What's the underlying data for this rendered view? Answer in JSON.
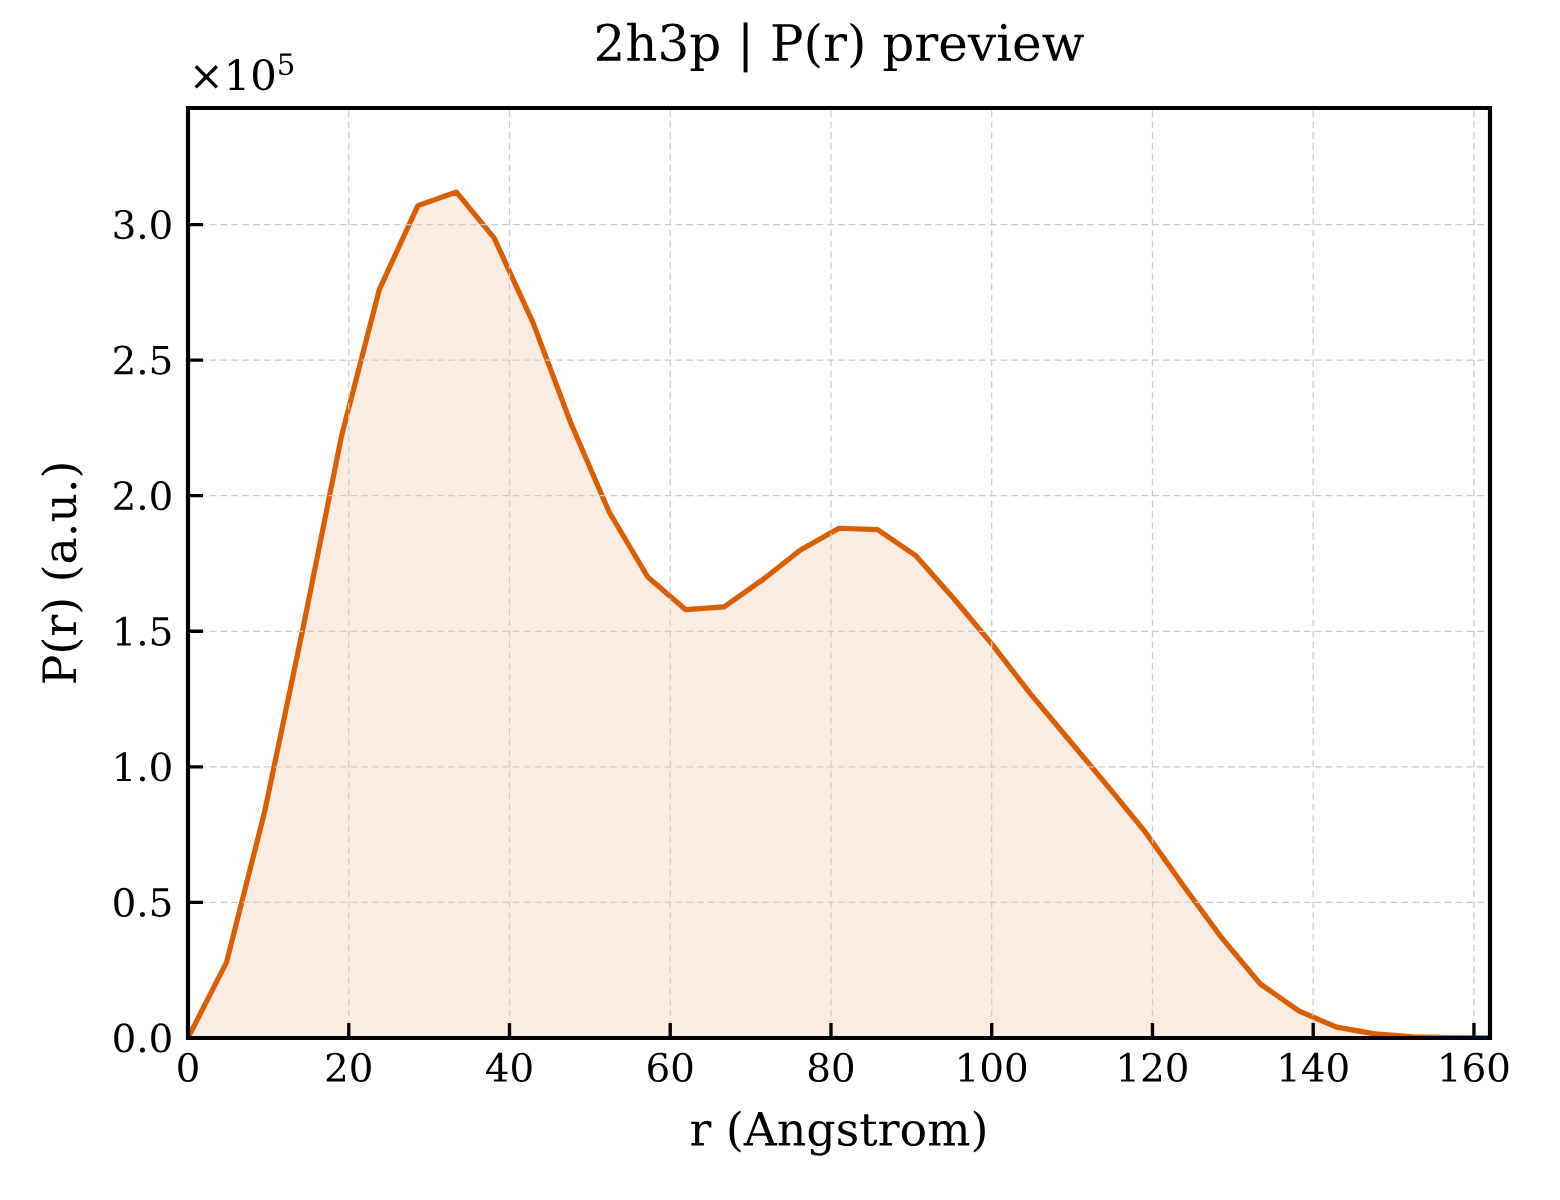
{
  "chart_data": {
    "type": "area",
    "title": "2h3p | P(r) preview",
    "xlabel": "r (Angstrom)",
    "ylabel": "P(r) (a.u.)",
    "annotations": [
      "×10$^{5}$"
    ],
    "x": [
      0,
      4.8,
      9.5,
      14.3,
      19.1,
      23.8,
      28.6,
      33.4,
      38.1,
      42.9,
      47.6,
      52.4,
      57.2,
      61.9,
      66.7,
      71.5,
      76.2,
      81.0,
      85.8,
      90.5,
      95.3,
      100.1,
      104.8,
      109.6,
      114.4,
      119.1,
      123.9,
      128.6,
      133.4,
      138.2,
      142.9,
      147.7,
      152.5,
      157.2,
      162.0
    ],
    "values": [
      0,
      0.28,
      0.83,
      1.51,
      2.22,
      2.76,
      3.07,
      3.12,
      2.95,
      2.64,
      2.27,
      1.94,
      1.7,
      1.58,
      1.59,
      1.69,
      1.8,
      1.88,
      1.875,
      1.78,
      1.62,
      1.45,
      1.27,
      1.1,
      0.93,
      0.76,
      0.56,
      0.37,
      0.2,
      0.1,
      0.04,
      0.015,
      0.004,
      0.001,
      0
    ],
    "color": "#d95f02",
    "xlim": [
      0,
      162
    ],
    "ylim": [
      0,
      3.43
    ],
    "xticks": [
      0,
      20,
      40,
      60,
      80,
      100,
      120,
      140,
      160
    ],
    "yticks": [
      {
        "value": 0,
        "label": "0.0"
      },
      {
        "value": 0.5,
        "label": "0.5"
      },
      {
        "value": 1,
        "label": "1.0"
      },
      {
        "value": 1.5,
        "label": "1.5"
      },
      {
        "value": 2,
        "label": "2.0"
      },
      {
        "value": 2.5,
        "label": "2.5"
      },
      {
        "value": 3,
        "label": "3.0"
      }
    ],
    "grid": true
  }
}
